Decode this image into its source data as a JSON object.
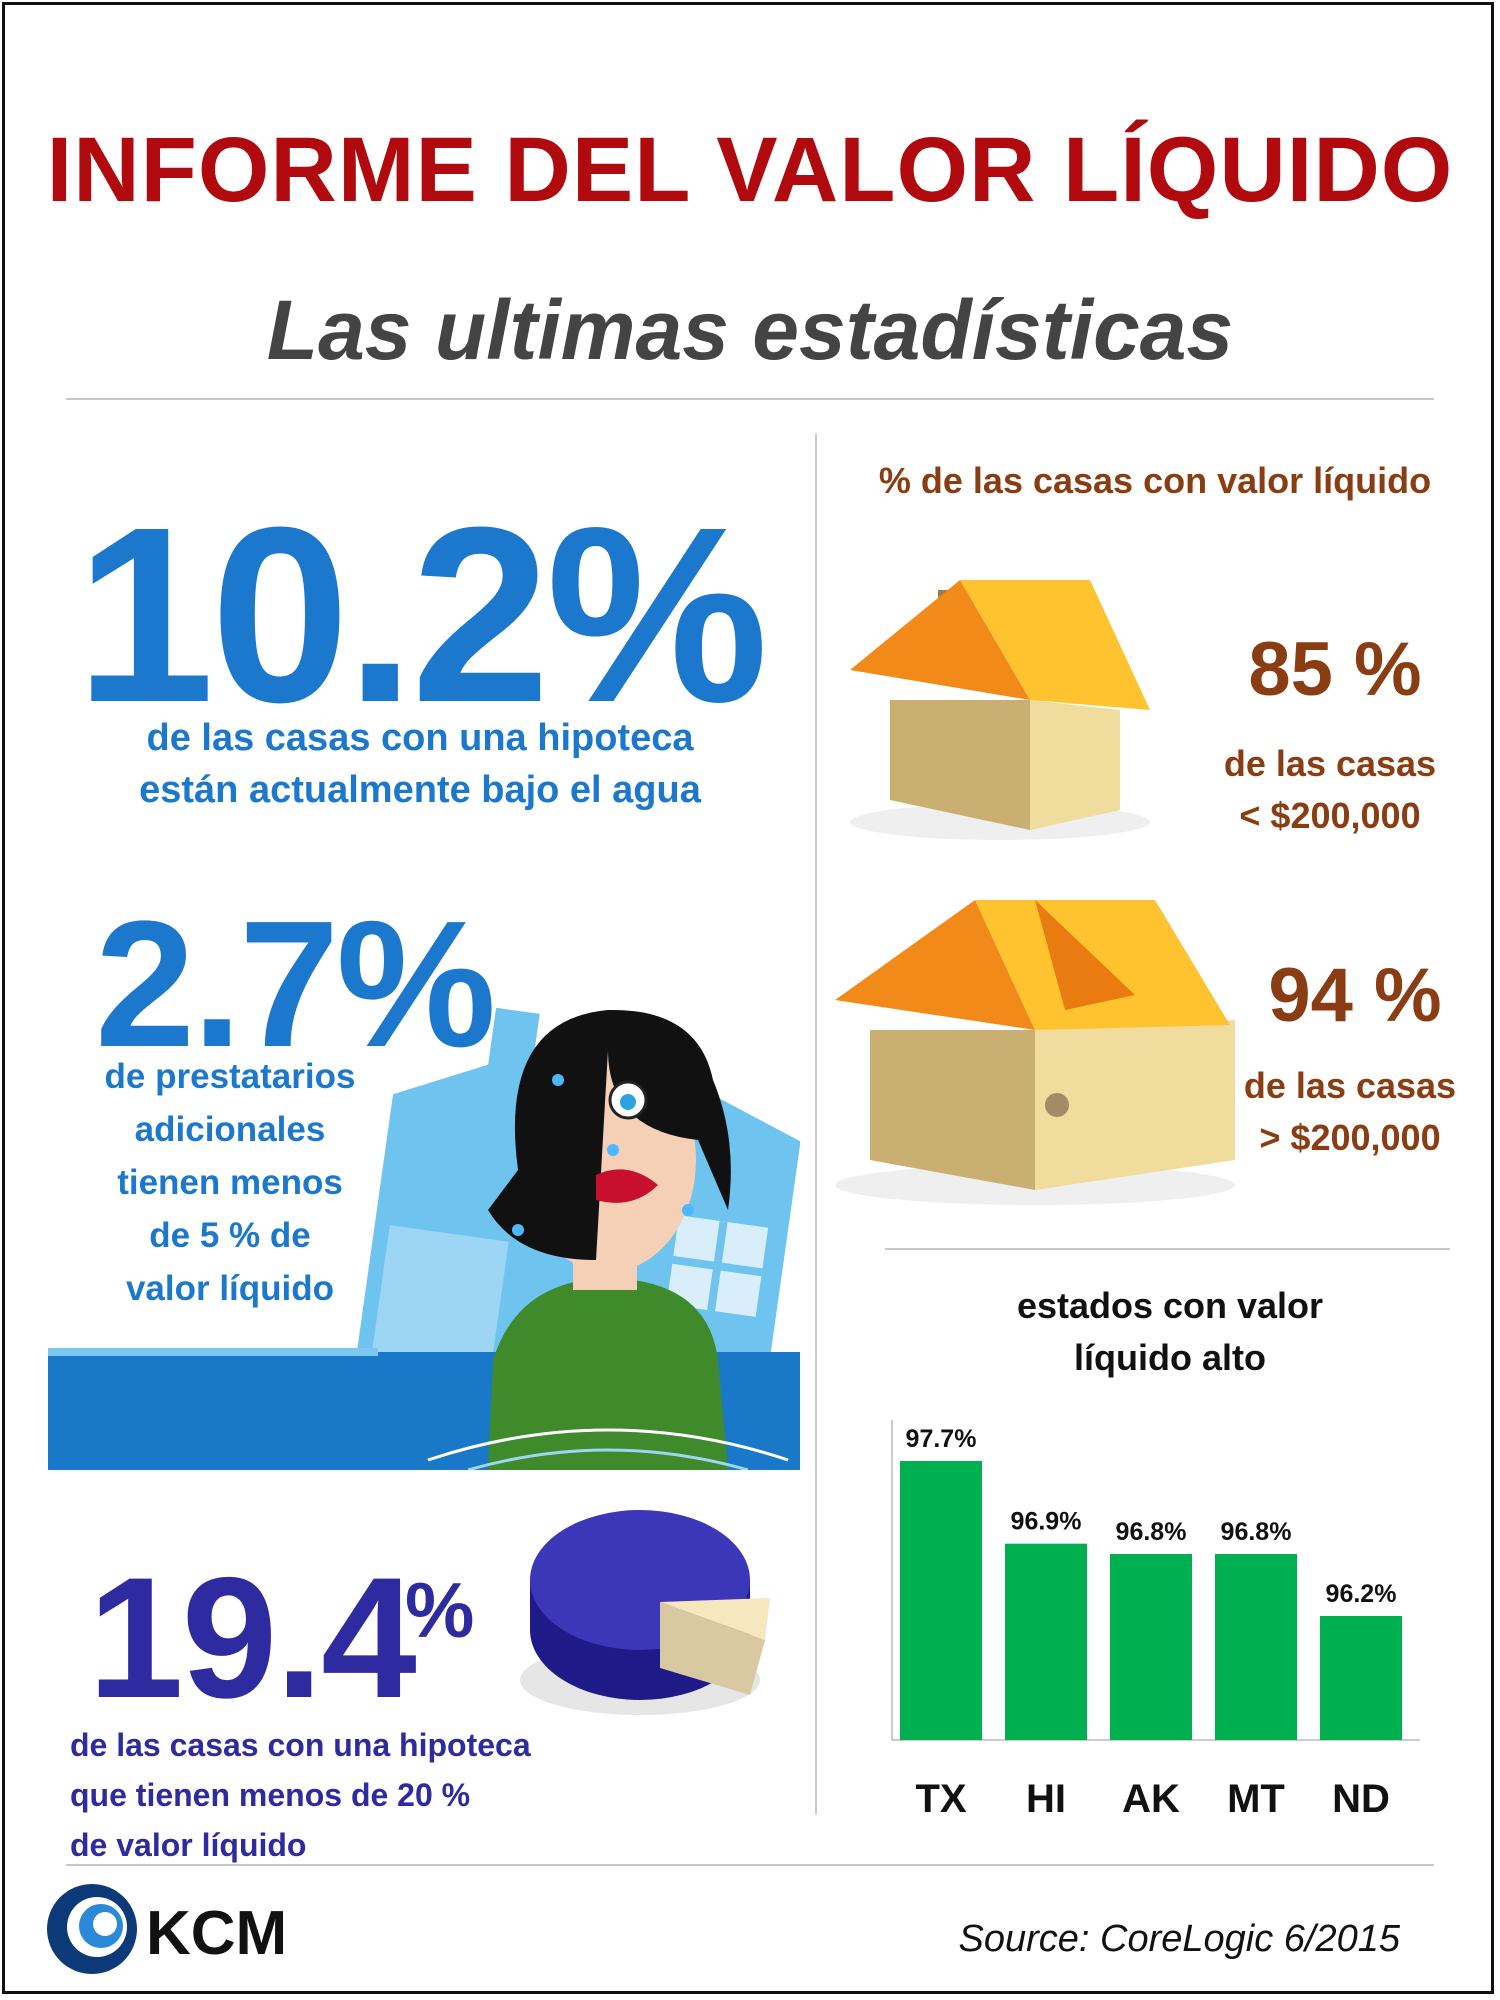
{
  "header": {
    "title": "INFORME DEL VALOR LÍQUIDO",
    "subtitle": "Las ultimas estadísticas"
  },
  "left": {
    "stat1": {
      "value": "10.2%",
      "line1": "de las casas con una hipoteca",
      "line2": "están actualmente bajo el agua"
    },
    "stat2": {
      "value": "2.7%",
      "lines": [
        "de prestatarios",
        "adicionales",
        "tienen menos",
        "de 5 % de",
        "valor líquido"
      ]
    },
    "stat3": {
      "value": "19.4",
      "percent": "%",
      "lines": [
        "de las casas con una hipoteca",
        "que tienen menos de 20 %",
        "de valor líquido"
      ]
    }
  },
  "right": {
    "heading": "% de las casas con valor líquido",
    "house1": {
      "value": "85 %",
      "line1": "de las casas",
      "line2": "< $200,000"
    },
    "house2": {
      "value": "94 %",
      "line1": "de las casas",
      "line2": "> $200,000"
    }
  },
  "colors": {
    "title": "#b00a0f",
    "stat_blue": "#1c78cc",
    "stat_indigo": "#2e2aa0",
    "house_text": "#8a3d12",
    "bar": "#00b050"
  },
  "chart_data": {
    "type": "bar",
    "title": "estados con valor líquido alto",
    "title_line1": "estados con valor",
    "title_line2": "líquido alto",
    "categories": [
      "TX",
      "HI",
      "AK",
      "MT",
      "ND"
    ],
    "values": [
      97.7,
      96.9,
      96.8,
      96.8,
      96.2
    ],
    "labels": [
      "97.7%",
      "96.9%",
      "96.8%",
      "96.8%",
      "96.2%"
    ],
    "ylim": [
      95.0,
      98.0
    ],
    "grid": false
  },
  "footer": {
    "logo_text": "KCM",
    "source": "Source: CoreLogic 6/2015"
  }
}
